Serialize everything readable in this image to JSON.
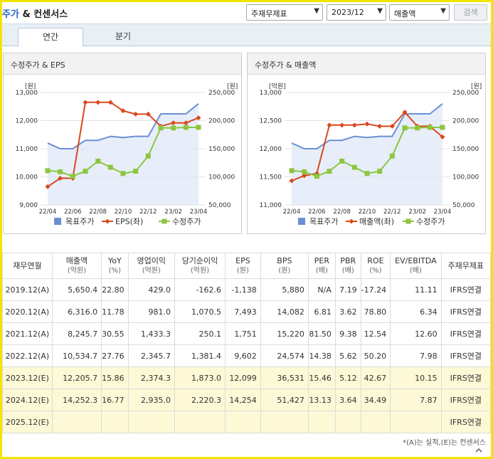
{
  "header": {
    "title_accent": "주가",
    "title_rest": " & 컨센서스",
    "report_type": "주재무제표",
    "period": "2023/12",
    "metric": "매출액",
    "search_label": "검색"
  },
  "tabs": [
    {
      "label": "연간",
      "active": true
    },
    {
      "label": "분기",
      "active": false
    }
  ],
  "chart_data": [
    {
      "type": "line",
      "title": "수정주가 & EPS",
      "x": [
        "22/04",
        "22/05",
        "22/06",
        "22/07",
        "22/08",
        "22/09",
        "22/10",
        "22/11",
        "22/12",
        "23/01",
        "23/02",
        "23/03",
        "23/04"
      ],
      "x_tick_labels": [
        "22/04",
        "22/06",
        "22/08",
        "22/10",
        "22/12",
        "23/02",
        "23/04"
      ],
      "left_axis": {
        "unit": "[원]",
        "ylim": [
          9000,
          13000
        ],
        "ticks": [
          "13,000",
          "12,000",
          "11,000",
          "10,000",
          "9,000"
        ]
      },
      "right_axis": {
        "unit": "[원]",
        "ylim": [
          50000,
          250000
        ],
        "ticks": [
          "250,000",
          "200,000",
          "150,000",
          "100,000",
          "50,000"
        ]
      },
      "series": [
        {
          "name": "목표주가",
          "axis": "right",
          "style": "line-area",
          "color": "#6b8fd6",
          "values": [
            160000,
            150000,
            150000,
            165000,
            165000,
            172000,
            170000,
            172000,
            172000,
            212000,
            212000,
            212000,
            230000
          ]
        },
        {
          "name": "EPS(좌)",
          "axis": "left",
          "style": "line-diamond",
          "color": "#d9481e",
          "values": [
            9650,
            9950,
            9950,
            12650,
            12650,
            12650,
            12350,
            12230,
            12230,
            11800,
            11920,
            11920,
            12099
          ]
        },
        {
          "name": "수정주가",
          "axis": "right",
          "style": "line-square",
          "color": "#8cc63f",
          "values": [
            111000,
            109000,
            101000,
            110000,
            128000,
            117000,
            106000,
            110000,
            137000,
            187000,
            187000,
            188000,
            188000
          ]
        }
      ],
      "legend_position": "bottom",
      "grid": "horizontal"
    },
    {
      "type": "line",
      "title": "수정주가 & 매출액",
      "x": [
        "22/04",
        "22/05",
        "22/06",
        "22/07",
        "22/08",
        "22/09",
        "22/10",
        "22/11",
        "22/12",
        "23/01",
        "23/02",
        "23/03",
        "23/04"
      ],
      "x_tick_labels": [
        "22/04",
        "22/06",
        "22/08",
        "22/10",
        "22/12",
        "23/02",
        "23/04"
      ],
      "left_axis": {
        "unit": "[억원]",
        "ylim": [
          11000,
          13000
        ],
        "ticks": [
          "13,000",
          "12,500",
          "12,000",
          "11,500",
          "11,000"
        ]
      },
      "right_axis": {
        "unit": "[원]",
        "ylim": [
          50000,
          250000
        ],
        "ticks": [
          "250,000",
          "200,000",
          "150,000",
          "100,000",
          "50,000"
        ]
      },
      "series": [
        {
          "name": "목표주가",
          "axis": "right",
          "style": "line-area",
          "color": "#6b8fd6",
          "values": [
            160000,
            150000,
            150000,
            165000,
            165000,
            172000,
            170000,
            172000,
            172000,
            212000,
            212000,
            212000,
            230000
          ]
        },
        {
          "name": "매출액(좌)",
          "axis": "left",
          "style": "line-diamond",
          "color": "#d9481e",
          "values": [
            11430,
            11520,
            11560,
            12420,
            12420,
            12420,
            12440,
            12400,
            12400,
            12650,
            12400,
            12400,
            12210
          ]
        },
        {
          "name": "수정주가",
          "axis": "right",
          "style": "line-square",
          "color": "#8cc63f",
          "values": [
            111000,
            109000,
            101000,
            110000,
            128000,
            117000,
            106000,
            110000,
            137000,
            187000,
            187000,
            188000,
            188000
          ]
        }
      ],
      "legend_position": "bottom",
      "grid": "horizontal"
    }
  ],
  "table": {
    "headers": [
      {
        "label": "재무연월",
        "unit": ""
      },
      {
        "label": "매출액",
        "unit": "(억원)"
      },
      {
        "label": "YoY",
        "unit": "(%)"
      },
      {
        "label": "영업이익",
        "unit": "(억원)"
      },
      {
        "label": "당기순이익",
        "unit": "(억원)"
      },
      {
        "label": "EPS",
        "unit": "(원)"
      },
      {
        "label": "BPS",
        "unit": "(원)"
      },
      {
        "label": "PER",
        "unit": "(배)"
      },
      {
        "label": "PBR",
        "unit": "(배)"
      },
      {
        "label": "ROE",
        "unit": "(%)"
      },
      {
        "label": "EV/EBITDA",
        "unit": "(배)"
      },
      {
        "label": "주재무제표",
        "unit": ""
      }
    ],
    "rows": [
      {
        "estimate": false,
        "cells": [
          "2019.12(A)",
          "5,650.4",
          "22.80",
          "429.0",
          "-162.6",
          "-1,138",
          "5,880",
          "N/A",
          "7.19",
          "-17.24",
          "11.11",
          "IFRS연결"
        ]
      },
      {
        "estimate": false,
        "cells": [
          "2020.12(A)",
          "6,316.0",
          "11.78",
          "981.0",
          "1,070.5",
          "7,493",
          "14,082",
          "6.81",
          "3.62",
          "78.80",
          "6.34",
          "IFRS연결"
        ]
      },
      {
        "estimate": false,
        "cells": [
          "2021.12(A)",
          "8,245.7",
          "30.55",
          "1,433.3",
          "250.1",
          "1,751",
          "15,220",
          "81.50",
          "9.38",
          "12.54",
          "12.60",
          "IFRS연결"
        ]
      },
      {
        "estimate": false,
        "cells": [
          "2022.12(A)",
          "10,534.7",
          "27.76",
          "2,345.7",
          "1,381.4",
          "9,602",
          "24,574",
          "14.38",
          "5.62",
          "50.20",
          "7.98",
          "IFRS연결"
        ]
      },
      {
        "estimate": true,
        "cells": [
          "2023.12(E)",
          "12,205.7",
          "15.86",
          "2,374.3",
          "1,873.0",
          "12,099",
          "36,531",
          "15.46",
          "5.12",
          "42.67",
          "10.15",
          "IFRS연결"
        ]
      },
      {
        "estimate": true,
        "cells": [
          "2024.12(E)",
          "14,252.3",
          "16.77",
          "2,935.0",
          "2,220.3",
          "14,254",
          "51,427",
          "13.13",
          "3.64",
          "34.49",
          "7.87",
          "IFRS연결"
        ]
      },
      {
        "estimate": true,
        "cells": [
          "2025.12(E)",
          "",
          "",
          "",
          "",
          "",
          "",
          "",
          "",
          "",
          "",
          "IFRS연결"
        ]
      }
    ]
  },
  "footnote": "*(A)는 실적,(E)는 컨센서스",
  "icons": {
    "scroll": "scroll-up-icon"
  }
}
